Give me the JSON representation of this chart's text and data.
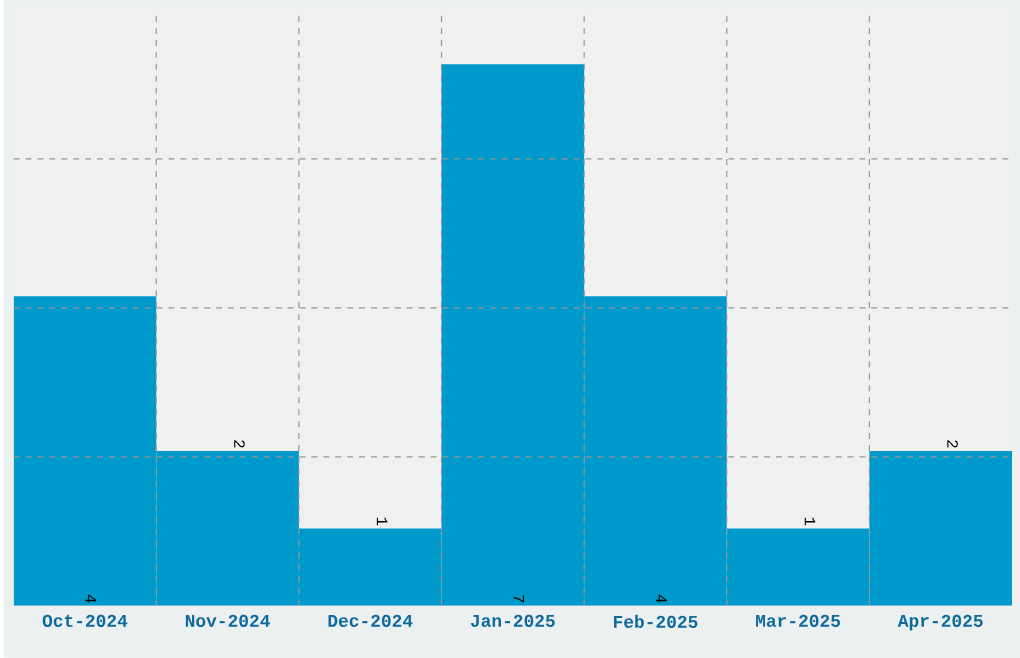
{
  "chart_data": {
    "type": "bar",
    "categories": [
      "Oct-2024",
      "Nov-2024",
      "Dec-2024",
      "Jan-2025",
      "Feb-2025",
      "Mar-2025",
      "Apr-2025"
    ],
    "values": [
      4,
      2,
      1,
      7,
      4,
      1,
      2
    ],
    "color": "#0099cc",
    "data_labels": true,
    "grid": true,
    "tick_labels": "x",
    "ylim": [
      0,
      7.7
    ],
    "yticks": [
      {
        "value": 1.925,
        "label": null
      },
      {
        "value": 3.85,
        "label": null
      },
      {
        "value": 5.775,
        "label": null
      }
    ]
  }
}
